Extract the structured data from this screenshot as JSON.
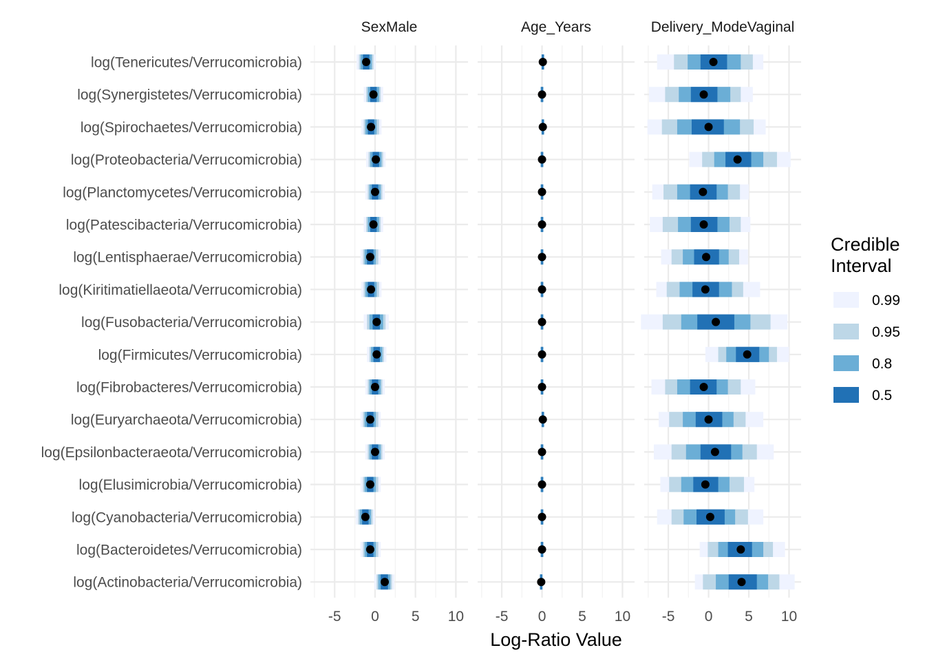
{
  "chart_data": {
    "type": "interval",
    "xlabel": "Log-Ratio Value",
    "facets": [
      "SexMale",
      "Age_Years",
      "Delivery_ModeVaginal"
    ],
    "x_ticks": [
      -5,
      0,
      5,
      10
    ],
    "xlim": [
      -8,
      11.5
    ],
    "legend": {
      "title": [
        "Credible",
        "Interval"
      ],
      "placement": "right",
      "levels": [
        {
          "label": "0.99",
          "color": "#EFF3FF"
        },
        {
          "label": "0.95",
          "color": "#BDD7E7"
        },
        {
          "label": "0.8",
          "color": "#6BAED6"
        },
        {
          "label": "0.5",
          "color": "#2171B5"
        }
      ]
    },
    "categories": [
      "log(Tenericutes/Verrucomicrobia)",
      "log(Synergistetes/Verrucomicrobia)",
      "log(Spirochaetes/Verrucomicrobia)",
      "log(Proteobacteria/Verrucomicrobia)",
      "log(Planctomycetes/Verrucomicrobia)",
      "log(Patescibacteria/Verrucomicrobia)",
      "log(Lentisphaerae/Verrucomicrobia)",
      "log(Kiritimatiellaeota/Verrucomicrobia)",
      "log(Fusobacteria/Verrucomicrobia)",
      "log(Firmicutes/Verrucomicrobia)",
      "log(Fibrobacteres/Verrucomicrobia)",
      "log(Euryarchaeota/Verrucomicrobia)",
      "log(Epsilonbacteraeota/Verrucomicrobia)",
      "log(Elusimicrobia/Verrucomicrobia)",
      "log(Cyanobacteria/Verrucomicrobia)",
      "log(Bacteroidetes/Verrucomicrobia)",
      "log(Actinobacteria/Verrucomicrobia)"
    ],
    "series": [
      {
        "facet": "SexMale",
        "values": [
          {
            "median": -1.1,
            "ci50": [
              -1.5,
              -0.7
            ],
            "ci80": [
              -1.8,
              -0.4
            ],
            "ci95": [
              -2.0,
              -0.2
            ],
            "ci99": [
              -2.3,
              0.1
            ]
          },
          {
            "median": -0.2,
            "ci50": [
              -0.6,
              0.2
            ],
            "ci80": [
              -0.9,
              0.5
            ],
            "ci95": [
              -1.1,
              0.7
            ],
            "ci99": [
              -1.4,
              1.0
            ]
          },
          {
            "median": -0.5,
            "ci50": [
              -0.9,
              -0.1
            ],
            "ci80": [
              -1.2,
              0.2
            ],
            "ci95": [
              -1.4,
              0.5
            ],
            "ci99": [
              -1.7,
              0.8
            ]
          },
          {
            "median": 0.1,
            "ci50": [
              -0.3,
              0.5
            ],
            "ci80": [
              -0.6,
              0.8
            ],
            "ci95": [
              -0.8,
              1.0
            ],
            "ci99": [
              -1.1,
              1.3
            ]
          },
          {
            "median": 0.0,
            "ci50": [
              -0.4,
              0.4
            ],
            "ci80": [
              -0.7,
              0.7
            ],
            "ci95": [
              -0.9,
              0.9
            ],
            "ci99": [
              -1.2,
              1.2
            ]
          },
          {
            "median": -0.2,
            "ci50": [
              -0.6,
              0.2
            ],
            "ci80": [
              -0.9,
              0.5
            ],
            "ci95": [
              -1.1,
              0.7
            ],
            "ci99": [
              -1.4,
              1.0
            ]
          },
          {
            "median": -0.6,
            "ci50": [
              -1.0,
              -0.2
            ],
            "ci80": [
              -1.3,
              0.1
            ],
            "ci95": [
              -1.5,
              0.4
            ],
            "ci99": [
              -1.8,
              0.7
            ]
          },
          {
            "median": -0.5,
            "ci50": [
              -0.9,
              -0.1
            ],
            "ci80": [
              -1.2,
              0.2
            ],
            "ci95": [
              -1.4,
              0.5
            ],
            "ci99": [
              -1.7,
              0.8
            ]
          },
          {
            "median": 0.2,
            "ci50": [
              -0.3,
              0.6
            ],
            "ci80": [
              -0.7,
              1.0
            ],
            "ci95": [
              -1.0,
              1.3
            ],
            "ci99": [
              -1.4,
              1.7
            ]
          },
          {
            "median": 0.2,
            "ci50": [
              -0.2,
              0.6
            ],
            "ci80": [
              -0.5,
              0.9
            ],
            "ci95": [
              -0.7,
              1.1
            ],
            "ci99": [
              -1.0,
              1.4
            ]
          },
          {
            "median": 0.0,
            "ci50": [
              -0.4,
              0.4
            ],
            "ci80": [
              -0.7,
              0.7
            ],
            "ci95": [
              -0.9,
              0.9
            ],
            "ci99": [
              -1.2,
              1.2
            ]
          },
          {
            "median": -0.6,
            "ci50": [
              -1.0,
              -0.2
            ],
            "ci80": [
              -1.3,
              0.1
            ],
            "ci95": [
              -1.5,
              0.4
            ],
            "ci99": [
              -1.8,
              0.7
            ]
          },
          {
            "median": 0.0,
            "ci50": [
              -0.4,
              0.4
            ],
            "ci80": [
              -0.7,
              0.7
            ],
            "ci95": [
              -0.9,
              0.9
            ],
            "ci99": [
              -1.2,
              1.2
            ]
          },
          {
            "median": -0.6,
            "ci50": [
              -1.0,
              -0.2
            ],
            "ci80": [
              -1.3,
              0.1
            ],
            "ci95": [
              -1.5,
              0.4
            ],
            "ci99": [
              -1.8,
              0.7
            ]
          },
          {
            "median": -1.2,
            "ci50": [
              -1.6,
              -0.8
            ],
            "ci80": [
              -1.9,
              -0.5
            ],
            "ci95": [
              -2.1,
              -0.3
            ],
            "ci99": [
              -2.4,
              0.0
            ]
          },
          {
            "median": -0.6,
            "ci50": [
              -1.0,
              -0.2
            ],
            "ci80": [
              -1.3,
              0.1
            ],
            "ci95": [
              -1.5,
              0.4
            ],
            "ci99": [
              -1.8,
              0.7
            ]
          },
          {
            "median": 1.2,
            "ci50": [
              0.7,
              1.6
            ],
            "ci80": [
              0.4,
              1.9
            ],
            "ci95": [
              0.2,
              2.1
            ],
            "ci99": [
              -0.1,
              2.4
            ]
          }
        ]
      },
      {
        "facet": "Age_Years",
        "values": [
          {
            "median": 0.1,
            "ci50": [
              0.0,
              0.2
            ],
            "ci80": [
              -0.05,
              0.25
            ],
            "ci95": [
              -0.1,
              0.3
            ],
            "ci99": [
              -0.15,
              0.35
            ]
          },
          {
            "median": 0.0,
            "ci50": [
              -0.1,
              0.1
            ],
            "ci80": [
              -0.15,
              0.15
            ],
            "ci95": [
              -0.2,
              0.2
            ],
            "ci99": [
              -0.25,
              0.25
            ]
          },
          {
            "median": 0.1,
            "ci50": [
              0.0,
              0.2
            ],
            "ci80": [
              -0.05,
              0.25
            ],
            "ci95": [
              -0.1,
              0.3
            ],
            "ci99": [
              -0.15,
              0.35
            ]
          },
          {
            "median": 0.0,
            "ci50": [
              -0.1,
              0.1
            ],
            "ci80": [
              -0.15,
              0.15
            ],
            "ci95": [
              -0.2,
              0.2
            ],
            "ci99": [
              -0.25,
              0.25
            ]
          },
          {
            "median": 0.0,
            "ci50": [
              -0.1,
              0.1
            ],
            "ci80": [
              -0.15,
              0.15
            ],
            "ci95": [
              -0.2,
              0.2
            ],
            "ci99": [
              -0.25,
              0.25
            ]
          },
          {
            "median": 0.0,
            "ci50": [
              -0.1,
              0.1
            ],
            "ci80": [
              -0.15,
              0.15
            ],
            "ci95": [
              -0.2,
              0.2
            ],
            "ci99": [
              -0.25,
              0.25
            ]
          },
          {
            "median": 0.0,
            "ci50": [
              -0.1,
              0.1
            ],
            "ci80": [
              -0.15,
              0.15
            ],
            "ci95": [
              -0.2,
              0.2
            ],
            "ci99": [
              -0.25,
              0.25
            ]
          },
          {
            "median": 0.0,
            "ci50": [
              -0.1,
              0.1
            ],
            "ci80": [
              -0.15,
              0.15
            ],
            "ci95": [
              -0.2,
              0.2
            ],
            "ci99": [
              -0.25,
              0.25
            ]
          },
          {
            "median": 0.0,
            "ci50": [
              -0.1,
              0.1
            ],
            "ci80": [
              -0.15,
              0.15
            ],
            "ci95": [
              -0.2,
              0.2
            ],
            "ci99": [
              -0.25,
              0.25
            ]
          },
          {
            "median": 0.0,
            "ci50": [
              -0.1,
              0.1
            ],
            "ci80": [
              -0.15,
              0.15
            ],
            "ci95": [
              -0.2,
              0.2
            ],
            "ci99": [
              -0.25,
              0.25
            ]
          },
          {
            "median": 0.0,
            "ci50": [
              -0.1,
              0.1
            ],
            "ci80": [
              -0.15,
              0.15
            ],
            "ci95": [
              -0.2,
              0.2
            ],
            "ci99": [
              -0.25,
              0.25
            ]
          },
          {
            "median": 0.1,
            "ci50": [
              0.0,
              0.2
            ],
            "ci80": [
              -0.05,
              0.25
            ],
            "ci95": [
              -0.1,
              0.3
            ],
            "ci99": [
              -0.15,
              0.35
            ]
          },
          {
            "median": 0.0,
            "ci50": [
              -0.1,
              0.1
            ],
            "ci80": [
              -0.15,
              0.15
            ],
            "ci95": [
              -0.2,
              0.2
            ],
            "ci99": [
              -0.25,
              0.25
            ]
          },
          {
            "median": 0.0,
            "ci50": [
              -0.1,
              0.1
            ],
            "ci80": [
              -0.15,
              0.15
            ],
            "ci95": [
              -0.2,
              0.2
            ],
            "ci99": [
              -0.25,
              0.25
            ]
          },
          {
            "median": 0.0,
            "ci50": [
              -0.1,
              0.1
            ],
            "ci80": [
              -0.15,
              0.15
            ],
            "ci95": [
              -0.2,
              0.2
            ],
            "ci99": [
              -0.25,
              0.25
            ]
          },
          {
            "median": 0.0,
            "ci50": [
              -0.1,
              0.1
            ],
            "ci80": [
              -0.15,
              0.15
            ],
            "ci95": [
              -0.2,
              0.2
            ],
            "ci99": [
              -0.25,
              0.25
            ]
          },
          {
            "median": -0.1,
            "ci50": [
              -0.2,
              0.0
            ],
            "ci80": [
              -0.25,
              0.05
            ],
            "ci95": [
              -0.3,
              0.1
            ],
            "ci99": [
              -0.35,
              0.15
            ]
          }
        ]
      },
      {
        "facet": "Delivery_ModeVaginal",
        "values": [
          {
            "median": 0.6,
            "ci50": [
              -1.0,
              2.3
            ],
            "ci80": [
              -2.6,
              4.0
            ],
            "ci95": [
              -4.3,
              5.5
            ],
            "ci99": [
              -6.4,
              6.8
            ]
          },
          {
            "median": -0.6,
            "ci50": [
              -2.2,
              1.1
            ],
            "ci80": [
              -3.7,
              2.7
            ],
            "ci95": [
              -5.4,
              4.0
            ],
            "ci99": [
              -7.4,
              5.5
            ]
          },
          {
            "median": 0.0,
            "ci50": [
              -2.1,
              1.9
            ],
            "ci80": [
              -3.9,
              3.9
            ],
            "ci95": [
              -5.8,
              5.6
            ],
            "ci99": [
              -7.6,
              7.1
            ]
          },
          {
            "median": 3.6,
            "ci50": [
              2.1,
              5.3
            ],
            "ci80": [
              0.7,
              6.8
            ],
            "ci95": [
              -0.8,
              8.5
            ],
            "ci99": [
              -2.4,
              10.2
            ]
          },
          {
            "median": -0.7,
            "ci50": [
              -2.3,
              1.0
            ],
            "ci80": [
              -3.9,
              2.4
            ],
            "ci95": [
              -5.6,
              3.9
            ],
            "ci99": [
              -7.0,
              5.0
            ]
          },
          {
            "median": -0.6,
            "ci50": [
              -2.2,
              1.1
            ],
            "ci80": [
              -3.8,
              2.6
            ],
            "ci95": [
              -5.7,
              4.0
            ],
            "ci99": [
              -7.3,
              5.2
            ]
          },
          {
            "median": -0.3,
            "ci50": [
              -1.8,
              1.3
            ],
            "ci80": [
              -3.2,
              2.5
            ],
            "ci95": [
              -4.6,
              3.8
            ],
            "ci99": [
              -5.9,
              4.9
            ]
          },
          {
            "median": -0.4,
            "ci50": [
              -2.0,
              1.3
            ],
            "ci80": [
              -3.6,
              2.9
            ],
            "ci95": [
              -5.2,
              4.3
            ],
            "ci99": [
              -6.5,
              6.4
            ]
          },
          {
            "median": 0.9,
            "ci50": [
              -1.4,
              3.2
            ],
            "ci80": [
              -3.4,
              5.2
            ],
            "ci95": [
              -5.7,
              7.7
            ],
            "ci99": [
              -8.4,
              9.8
            ]
          },
          {
            "median": 4.8,
            "ci50": [
              3.4,
              6.3
            ],
            "ci80": [
              2.2,
              7.5
            ],
            "ci95": [
              1.2,
              8.5
            ],
            "ci99": [
              -0.4,
              10.0
            ]
          },
          {
            "median": -0.6,
            "ci50": [
              -2.3,
              1.0
            ],
            "ci80": [
              -3.9,
              2.4
            ],
            "ci95": [
              -5.4,
              4.0
            ],
            "ci99": [
              -7.1,
              5.8
            ]
          },
          {
            "median": 0.0,
            "ci50": [
              -1.6,
              1.7
            ],
            "ci80": [
              -3.2,
              3.1
            ],
            "ci95": [
              -4.9,
              4.6
            ],
            "ci99": [
              -6.2,
              6.8
            ]
          },
          {
            "median": 0.8,
            "ci50": [
              -1.0,
              2.8
            ],
            "ci80": [
              -2.8,
              4.2
            ],
            "ci95": [
              -4.6,
              6.0
            ],
            "ci99": [
              -6.8,
              8.1
            ]
          },
          {
            "median": -0.4,
            "ci50": [
              -1.9,
              1.2
            ],
            "ci80": [
              -3.4,
              2.6
            ],
            "ci95": [
              -4.9,
              4.4
            ],
            "ci99": [
              -6.0,
              5.7
            ]
          },
          {
            "median": 0.2,
            "ci50": [
              -1.5,
              2.0
            ],
            "ci80": [
              -3.1,
              3.3
            ],
            "ci95": [
              -4.6,
              4.9
            ],
            "ci99": [
              -6.4,
              6.8
            ]
          },
          {
            "median": 4.0,
            "ci50": [
              2.4,
              5.4
            ],
            "ci80": [
              1.2,
              6.8
            ],
            "ci95": [
              -0.1,
              8.0
            ],
            "ci99": [
              -1.1,
              9.5
            ]
          },
          {
            "median": 4.1,
            "ci50": [
              2.5,
              6.0
            ],
            "ci80": [
              0.9,
              7.4
            ],
            "ci95": [
              -0.7,
              8.8
            ],
            "ci99": [
              -1.7,
              10.7
            ]
          }
        ]
      }
    ]
  }
}
